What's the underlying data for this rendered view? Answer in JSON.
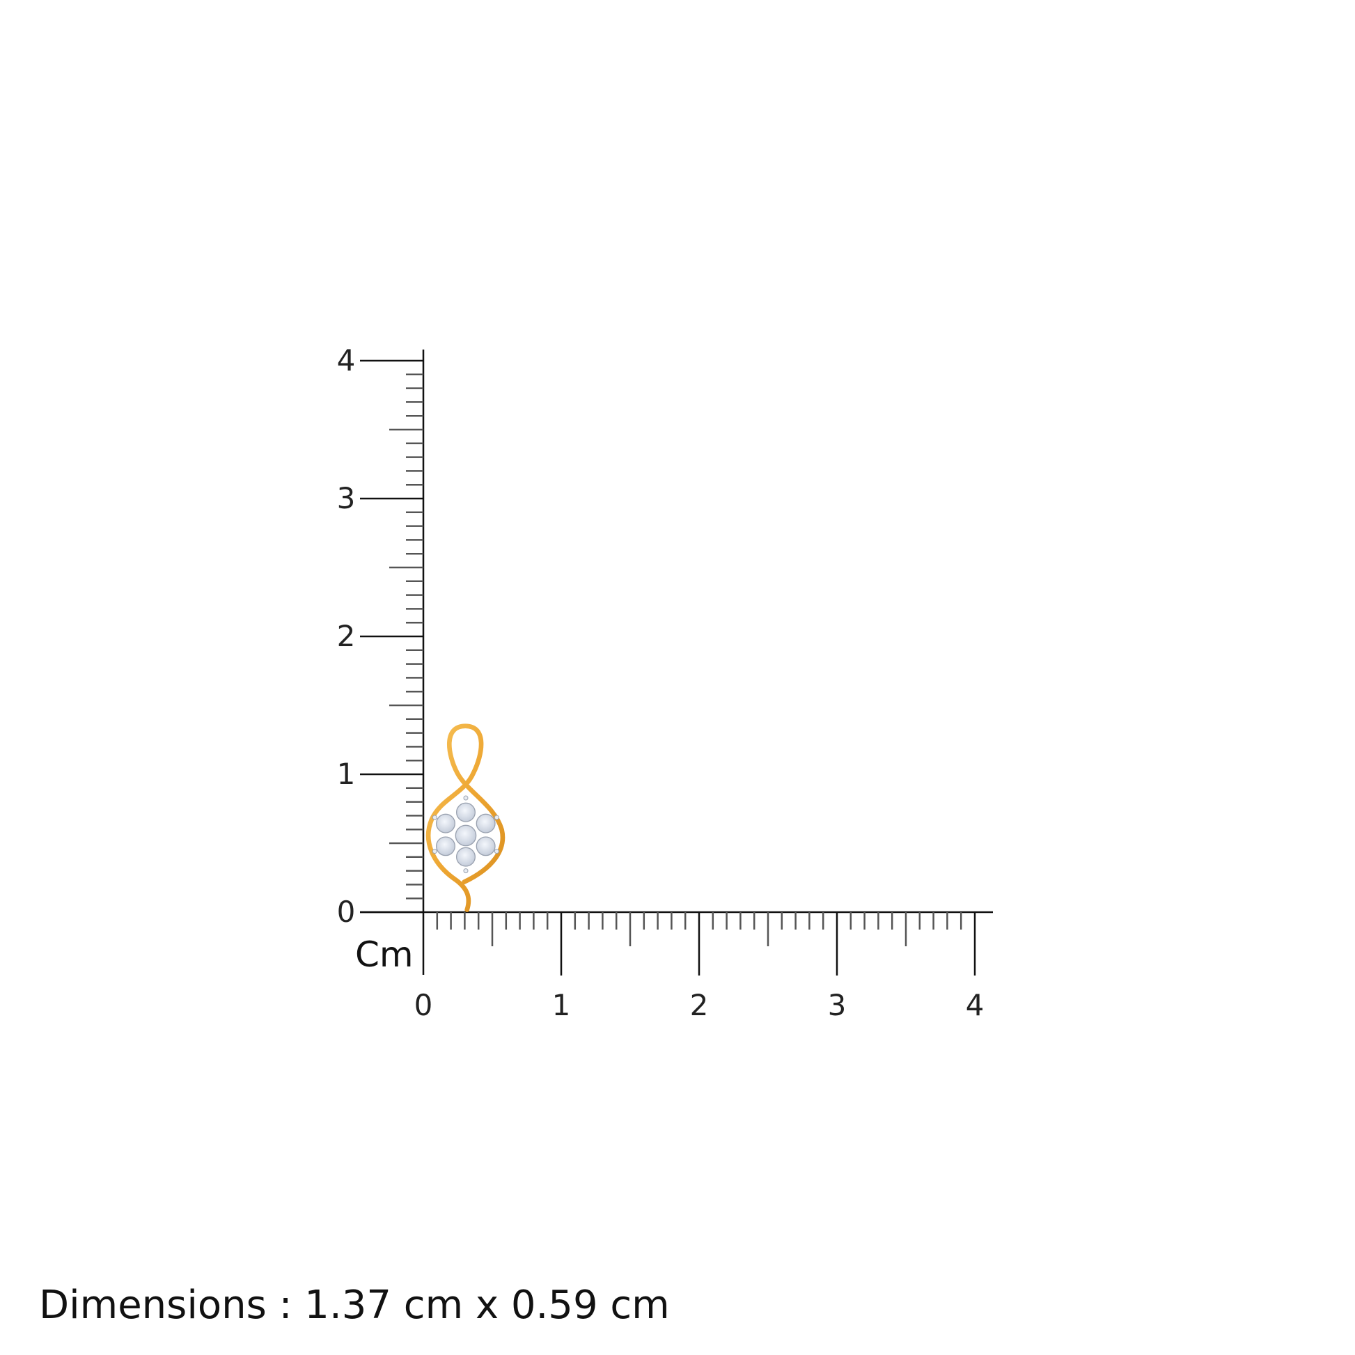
{
  "ruler": {
    "unit_label": "Cm",
    "max_cm": 4,
    "x_tick_labels": [
      "0",
      "1",
      "2",
      "3",
      "4"
    ],
    "y_tick_labels": [
      "0",
      "1",
      "2",
      "3",
      "4"
    ],
    "line_color": "#111111"
  },
  "product": {
    "image": "gold-infinity-pendant-with-diamond-flower-cluster",
    "metal_color": "#EDA531",
    "stone_color": "#DDE4F0",
    "height_cm": 1.37,
    "width_cm": 0.59
  },
  "dimensions_text": "Dimensions : 1.37 cm x 0.59 cm"
}
